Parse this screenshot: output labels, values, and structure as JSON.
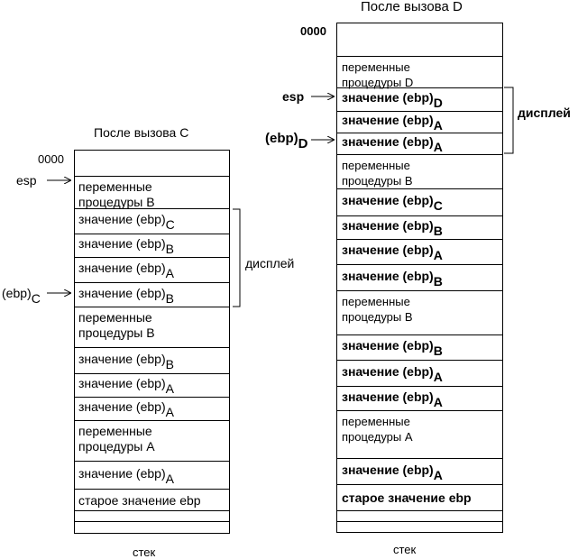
{
  "left": {
    "title": "После вызова C",
    "zero": "0000",
    "esp": "esp",
    "ebp": {
      "base": "(ebp)",
      "sub": "C"
    },
    "display": "дисплей",
    "footer": "стек",
    "cells": [
      {
        "lines": [
          "переменные",
          "процедуры  B"
        ]
      },
      {
        "base": "значение (ebp)",
        "sub": "C"
      },
      {
        "base": "значение (ebp)",
        "sub": "B"
      },
      {
        "base": "значение (ebp)",
        "sub": "A"
      },
      {
        "base": "значение (ebp)",
        "sub": "B"
      },
      {
        "lines": [
          "переменные",
          "процедуры  B"
        ]
      },
      {
        "base": "значение (ebp)",
        "sub": "B"
      },
      {
        "base": "значение (ebp)",
        "sub": "A"
      },
      {
        "base": "значение (ebp)",
        "sub": "A"
      },
      {
        "lines": [
          "переменные",
          "процедуры  A"
        ]
      },
      {
        "base": "значение (ebp)",
        "sub": "A"
      },
      {
        "text": "старое значение ebp"
      }
    ]
  },
  "right": {
    "title": "После вызова  D",
    "zero": "0000",
    "esp": "esp",
    "ebp": {
      "base": "(ebp)",
      "sub": "D"
    },
    "display": "дисплей",
    "footer": "стек",
    "cells": [
      {
        "lines": [
          "переменные",
          "процедуры  D"
        ]
      },
      {
        "base": "значение (ebp)",
        "sub": "D"
      },
      {
        "base": "значение (ebp)",
        "sub": "A"
      },
      {
        "base": "значение (ebp)",
        "sub": "A"
      },
      {
        "lines": [
          "переменные",
          "процедуры  B"
        ]
      },
      {
        "base": "значение (ebp)",
        "sub": "C"
      },
      {
        "base": "значение (ebp)",
        "sub": "B"
      },
      {
        "base": "значение (ebp)",
        "sub": "A"
      },
      {
        "base": "значение (ebp)",
        "sub": "B"
      },
      {
        "lines": [
          "переменные",
          "процедуры  B"
        ]
      },
      {
        "base": "значение (ebp)",
        "sub": "B"
      },
      {
        "base": "значение (ebp)",
        "sub": "A"
      },
      {
        "base": "значение (ebp)",
        "sub": "A"
      },
      {
        "lines": [
          "переменные",
          "процедуры  A"
        ]
      },
      {
        "base": "значение (ebp)",
        "sub": "A"
      },
      {
        "text": "старое значение ebp"
      }
    ]
  }
}
